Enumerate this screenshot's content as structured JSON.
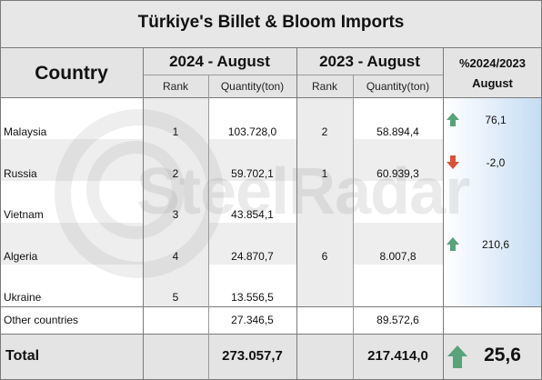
{
  "title": "Türkiye's Billet & Bloom Imports",
  "headers": {
    "country": "Country",
    "period_2024": "2024 - August",
    "period_2023": "2023 - August",
    "change_line1": "%2024/2023",
    "change_line2": "August",
    "rank": "Rank",
    "quantity": "Quantity(ton)"
  },
  "rows": [
    {
      "country": "Malaysia",
      "rank_2024": "1",
      "qty_2024": "103.728,0",
      "rank_2023": "2",
      "qty_2023": "58.894,4",
      "change": "76,1",
      "trend": "up"
    },
    {
      "country": "Russia",
      "rank_2024": "2",
      "qty_2024": "59.702,1",
      "rank_2023": "1",
      "qty_2023": "60.939,3",
      "change": "-2,0",
      "trend": "down"
    },
    {
      "country": "Vietnam",
      "rank_2024": "3",
      "qty_2024": "43.854,1",
      "rank_2023": "",
      "qty_2023": "",
      "change": "",
      "trend": ""
    },
    {
      "country": "Algeria",
      "rank_2024": "4",
      "qty_2024": "24.870,7",
      "rank_2023": "6",
      "qty_2023": "8.007,8",
      "change": "210,6",
      "trend": "up"
    },
    {
      "country": "Ukraine",
      "rank_2024": "5",
      "qty_2024": "13.556,5",
      "rank_2023": "",
      "qty_2023": "",
      "change": "",
      "trend": ""
    }
  ],
  "other": {
    "label": "Other countries",
    "qty_2024": "27.346,5",
    "qty_2023": "89.572,6"
  },
  "total": {
    "label": "Total",
    "qty_2024": "273.057,7",
    "qty_2023": "217.414,0",
    "change": "25,6",
    "trend": "up"
  },
  "watermark": "SteelRadar",
  "colors": {
    "up": "#5aa27a",
    "down": "#d9533a",
    "header_bg": "#e6e6e6",
    "change_gradient_end": "#c5dcf3"
  }
}
